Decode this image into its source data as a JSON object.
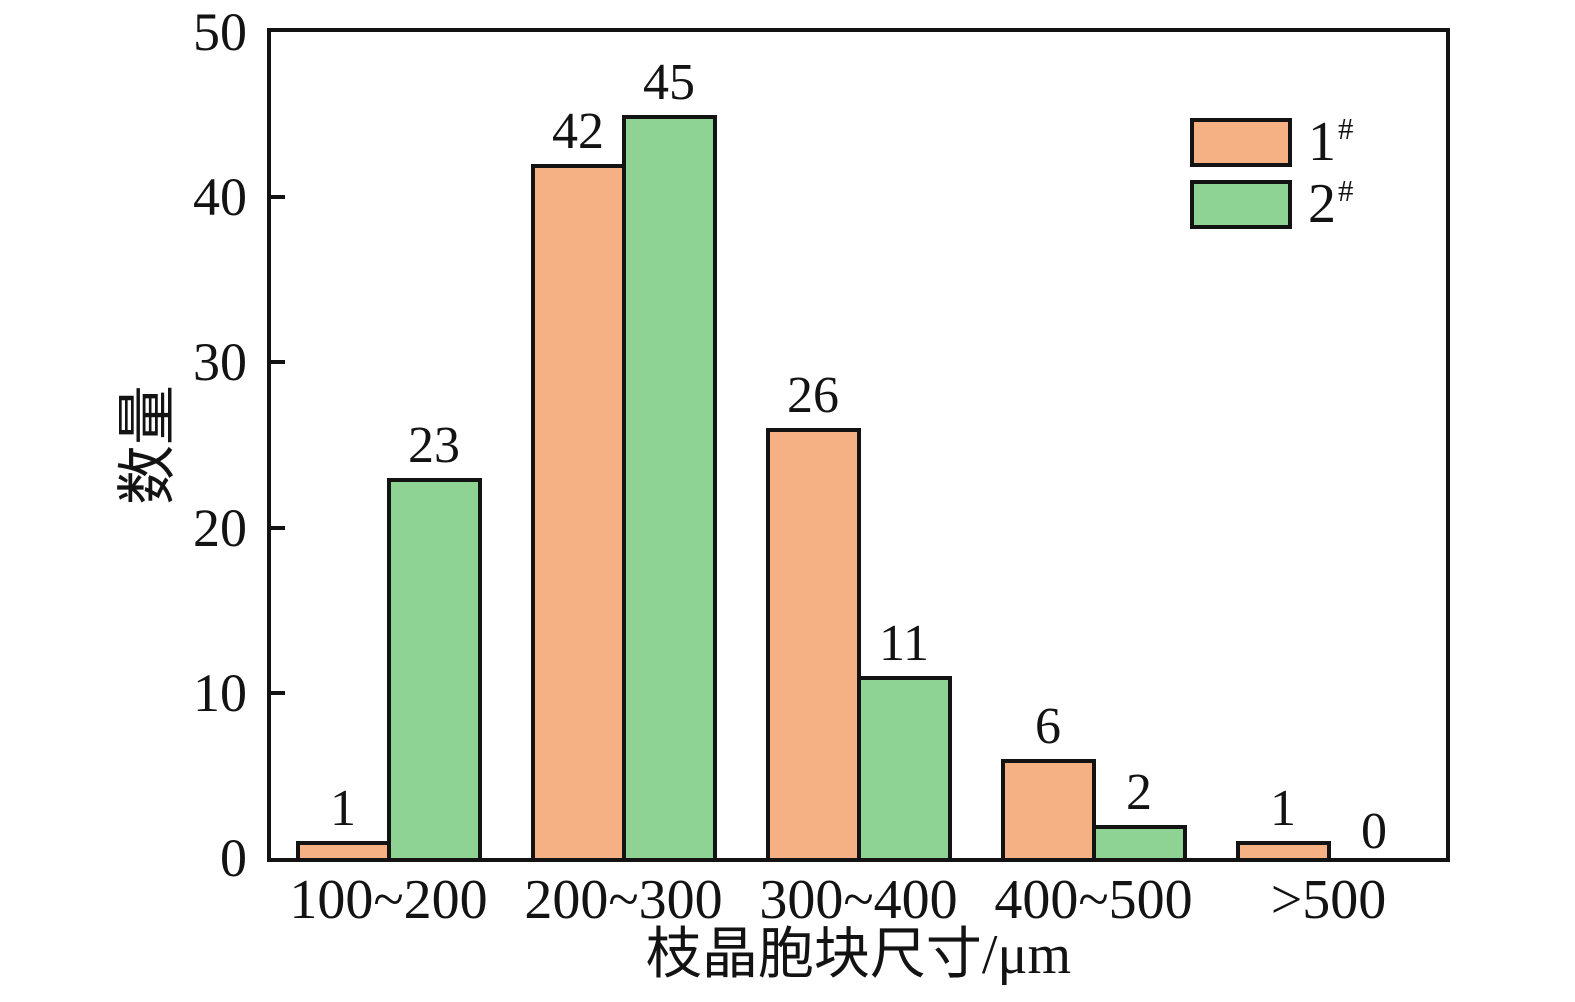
{
  "chart_data": {
    "type": "bar",
    "title": "",
    "categories": [
      "100~200",
      "200~300",
      "300~400",
      "400~500",
      ">500"
    ],
    "series": [
      {
        "name": "1#",
        "label_base": "1",
        "label_sup": "#",
        "color": "#F5B083",
        "values": [
          1,
          42,
          26,
          6,
          1
        ]
      },
      {
        "name": "2#",
        "label_base": "2",
        "label_sup": "#",
        "color": "#8FD394",
        "values": [
          23,
          45,
          11,
          2,
          0
        ]
      }
    ],
    "value_labels": [
      [
        "1",
        "42",
        "26",
        "6",
        "1"
      ],
      [
        "23",
        "45",
        "11",
        "2",
        "0"
      ]
    ],
    "xlabel": "枝晶胞块尺寸/μm",
    "ylabel": "数量",
    "ylim": [
      0,
      50
    ],
    "yticks": [
      "0",
      "10",
      "20",
      "30",
      "40",
      "50"
    ],
    "grid": false,
    "legend_position": "top-right",
    "bar_border_color": "#131313",
    "axis_color": "#131313",
    "background_color": "#ffffff"
  }
}
